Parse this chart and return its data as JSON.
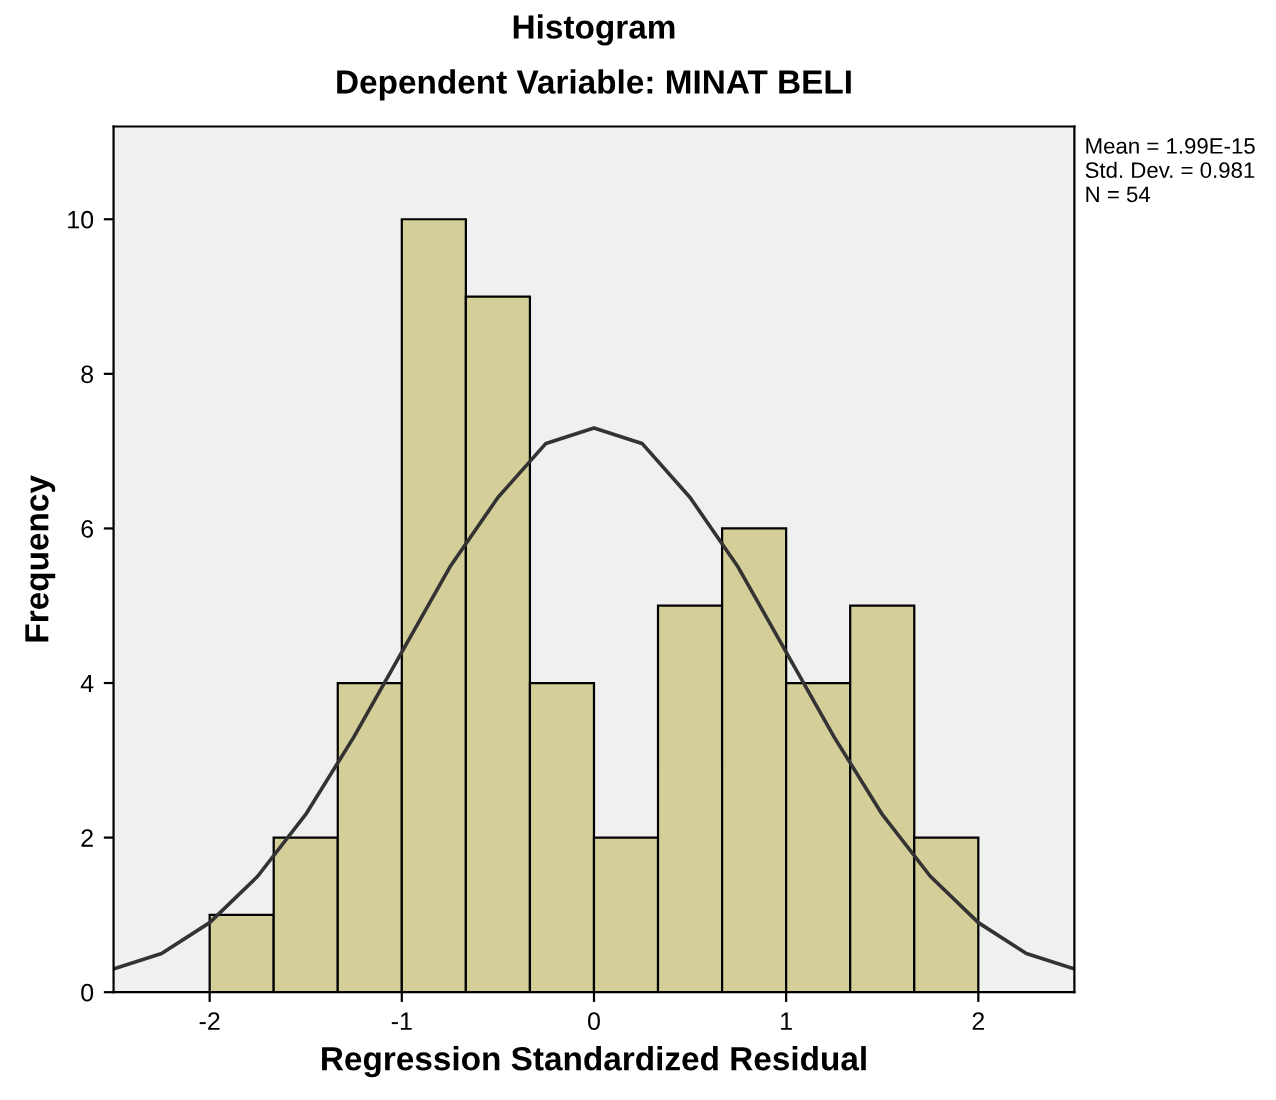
{
  "chart_data": {
    "type": "histogram",
    "title": "Histogram",
    "subtitle": "Dependent Variable: MINAT BELI",
    "xlabel": "Regression Standardized Residual",
    "ylabel": "Frequency",
    "bins": [
      -2,
      -1.6667,
      -1.3333,
      -1,
      -0.6667,
      -0.3333,
      0,
      0.3333,
      0.6667,
      1,
      1.3333,
      1.6667,
      2
    ],
    "values": [
      1,
      2,
      4,
      10,
      9,
      4,
      2,
      5,
      6,
      4,
      5,
      2
    ],
    "color": "#d4cf99",
    "series": [
      {
        "type": "line",
        "color": "#333333",
        "x": [
          -2.5,
          -2.25,
          -2,
          -1.75,
          -1.5,
          -1.25,
          -1,
          -0.75,
          -0.5,
          -0.25,
          0,
          0.25,
          0.5,
          0.75,
          1,
          1.25,
          1.5,
          1.75,
          2,
          2.25,
          2.5
        ],
        "values": [
          0.3,
          0.5,
          0.9,
          1.5,
          2.3,
          3.3,
          4.4,
          5.5,
          6.4,
          7.1,
          7.3,
          7.1,
          6.4,
          5.5,
          4.4,
          3.3,
          2.3,
          1.5,
          0.9,
          0.5,
          0.3
        ]
      }
    ],
    "xlim": [
      -2.5,
      2.5
    ],
    "ylim": [
      0,
      11.2
    ],
    "xticks": [
      -2,
      -1,
      0,
      1,
      2
    ],
    "yticks": [
      0,
      2,
      4,
      6,
      8,
      10
    ],
    "grid": false,
    "annotations": [
      "Mean = 1.99E-15",
      "Std. Dev. = 0.981",
      "N = 54"
    ]
  }
}
